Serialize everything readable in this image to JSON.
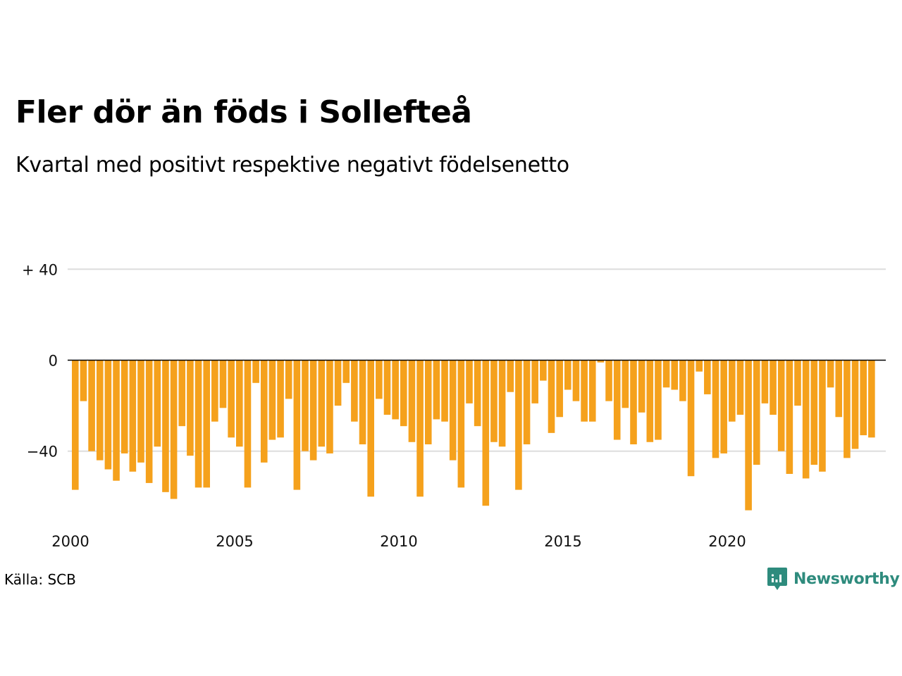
{
  "title": "Fler dör än föds i Sollefteå",
  "subtitle": "Kvartal med positivt respektive negativt födelsenetto",
  "source": "Källa: SCB",
  "brand": {
    "name": "Newsworthy",
    "color": "#2e8b7d",
    "icon": "newsworthy-logo-icon"
  },
  "colors": {
    "negative": "#f5a11c",
    "gridline": "#dddddd",
    "zero_line": "#000000"
  },
  "chart_data": {
    "type": "bar",
    "title": "Fler dör än föds i Sollefteå",
    "subtitle": "Kvartal med positivt respektive negativt födelsenetto",
    "xlabel": "",
    "ylabel": "",
    "x_ticks": [
      "2000",
      "2005",
      "2010",
      "2015",
      "2020"
    ],
    "y_ticks": [
      {
        "value": 40,
        "label": "+ 40"
      },
      {
        "value": 0,
        "label": "0"
      },
      {
        "value": -40,
        "label": "−40"
      }
    ],
    "ylim": [
      -70,
      40
    ],
    "grid": true,
    "start_year": 2000,
    "values": [
      -57,
      -18,
      -40,
      -44,
      -48,
      -53,
      -41,
      -49,
      -45,
      -54,
      -38,
      -58,
      -61,
      -29,
      -42,
      -56,
      -56,
      -27,
      -21,
      -34,
      -38,
      -56,
      -10,
      -45,
      -35,
      -34,
      -17,
      -57,
      -40,
      -44,
      -38,
      -41,
      -20,
      -10,
      -27,
      -37,
      -60,
      -17,
      -24,
      -26,
      -29,
      -36,
      -60,
      -37,
      -26,
      -27,
      -44,
      -56,
      -19,
      -29,
      -64,
      -36,
      -38,
      -14,
      -57,
      -37,
      -19,
      -9,
      -32,
      -25,
      -13,
      -18,
      -27,
      -27,
      -1,
      -18,
      -35,
      -21,
      -37,
      -23,
      -36,
      -35,
      -12,
      -13,
      -18,
      -51,
      -5,
      -15,
      -43,
      -41,
      -27,
      -24,
      -66,
      -46,
      -19,
      -24,
      -40,
      -50,
      -20,
      -52,
      -46,
      -49,
      -12,
      -25,
      -43,
      -39,
      -33,
      -34
    ]
  }
}
